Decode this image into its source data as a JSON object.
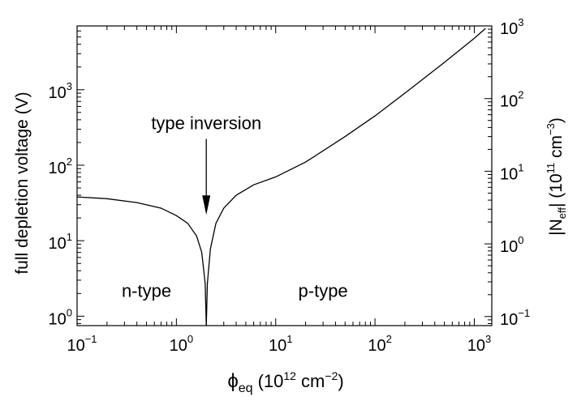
{
  "chart_data": {
    "type": "line",
    "xlabel": {
      "symbol": "ϕ",
      "sub": "eq",
      "unit_pre": "(10",
      "unit_exp": "12",
      "unit_mid": " cm",
      "unit_exp2": "−2",
      "unit_post": ")"
    },
    "ylabel_left": "full depletion voltage (V)",
    "ylabel_right": {
      "pre": "|N",
      "sub": "eff",
      "post": "| (10",
      "exp": "11",
      "mid": " cm",
      "exp2": "−3",
      "end": ")"
    },
    "x_scale": "log",
    "y_scale": "log",
    "xlim": [
      0.1,
      1500
    ],
    "ylim_left": [
      0.75,
      7000
    ],
    "ylim_right": [
      0.075,
      1000
    ],
    "x_ticks": [
      {
        "base": "10",
        "exp": "−1",
        "value": 0.1
      },
      {
        "base": "10",
        "exp": "0",
        "value": 1
      },
      {
        "base": "10",
        "exp": "1",
        "value": 10
      },
      {
        "base": "10",
        "exp": "2",
        "value": 100
      },
      {
        "base": "10",
        "exp": "3",
        "value": 1000
      }
    ],
    "y_ticks_left": [
      {
        "base": "10",
        "exp": "0",
        "value": 1
      },
      {
        "base": "10",
        "exp": "1",
        "value": 10
      },
      {
        "base": "10",
        "exp": "2",
        "value": 100
      },
      {
        "base": "10",
        "exp": "3",
        "value": 1000
      }
    ],
    "y_ticks_right": [
      {
        "base": "10",
        "exp": "−1",
        "value": 0.1
      },
      {
        "base": "10",
        "exp": "0",
        "value": 1
      },
      {
        "base": "10",
        "exp": "1",
        "value": 10
      },
      {
        "base": "10",
        "exp": "2",
        "value": 100
      },
      {
        "base": "10",
        "exp": "3",
        "value": 1000
      }
    ],
    "series": [
      {
        "x": [
          0.1,
          0.2,
          0.4,
          0.7,
          1.0,
          1.3,
          1.6,
          1.8,
          1.95,
          2.0,
          2.05,
          2.2,
          2.5,
          3.0,
          4.0,
          6.0,
          10,
          20,
          50,
          100,
          200,
          500,
          1000,
          1300
        ],
        "y": [
          38,
          36,
          32,
          27,
          21.5,
          17,
          11.5,
          7,
          2.7,
          0.75,
          2.7,
          7.8,
          17,
          27,
          40,
          55,
          70,
          110,
          240,
          450,
          900,
          2300,
          4800,
          6500
        ]
      }
    ],
    "annotations": [
      {
        "text": "type inversion",
        "x": 2.0,
        "y": 300,
        "arrow_to": {
          "x": 2.0,
          "y": 22
        }
      },
      {
        "text": "n-type",
        "x": 0.5,
        "y": 1.8
      },
      {
        "text": "p-type",
        "x": 30,
        "y": 1.8
      }
    ],
    "grid": false,
    "legend": "none"
  }
}
